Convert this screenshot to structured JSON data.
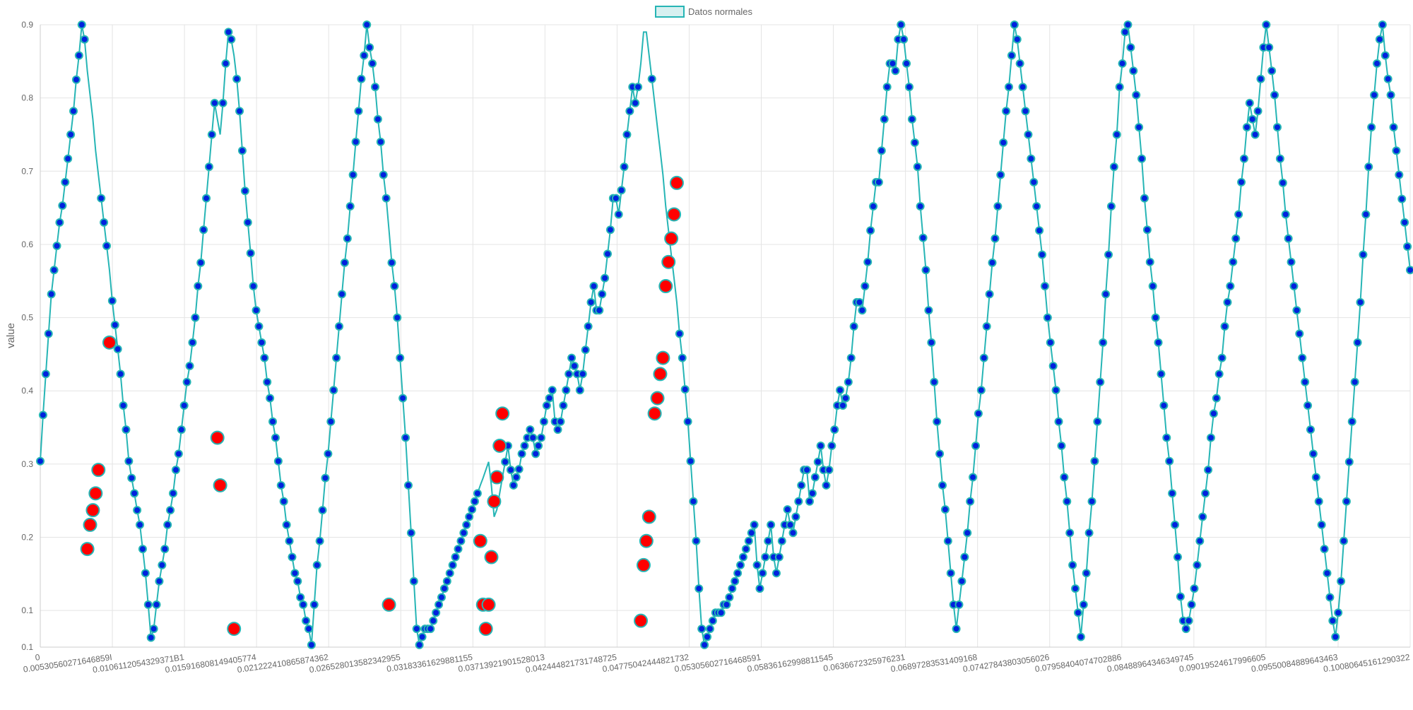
{
  "chart_data": {
    "type": "line",
    "ylabel": "value",
    "ylim": [
      0.1,
      0.9
    ],
    "y_ticks": [
      "0.1",
      "0.1",
      "0.2",
      "0.3",
      "0.4",
      "0.5",
      "0.6",
      "0.7",
      "0.8",
      "0.9"
    ],
    "y_tick_values": [
      0.05,
      0.1,
      0.2,
      0.3,
      0.4,
      0.5,
      0.6,
      0.7,
      0.8,
      0.9
    ],
    "x_ticks": [
      "0",
      "0.00530560271646859I",
      "0.0106112054329371B1",
      "0.015916808149405774",
      "0.021222410865874362",
      "0.026528013582342955",
      "0.03183361629881155",
      "0.03713921901528013",
      "0.042444821731748725",
      "0.04775042444821732",
      "0.05305602716468591",
      "0.05836162998811545",
      "0.0636672325976231",
      "0.06897283531409168",
      "0.07427843803056026",
      "0.07958404074702886",
      "0.08488964346349745",
      "0.09019524617996605",
      "0.09550084889643463",
      "0.10080645161290322"
    ],
    "grid": true,
    "legend": {
      "position": "top-center",
      "entries": [
        "Datos normales"
      ]
    },
    "series": [
      {
        "name": "Datos normales",
        "color": "#26b5b5",
        "point_fill": "#0022dd",
        "anomaly_color": "#ff0000",
        "x_step": 0.000265,
        "values": [
          0.304,
          0.367,
          0.423,
          0.478,
          0.532,
          0.565,
          0.598,
          0.63,
          0.653,
          0.685,
          0.717,
          0.75,
          0.782,
          0.825,
          0.858,
          0.9,
          0.88,
          0.837,
          0.804,
          0.771,
          0.728,
          0.695,
          0.663,
          0.63,
          0.598,
          0.565,
          0.523,
          0.49,
          0.457,
          0.423,
          0.38,
          0.347,
          0.304,
          0.281,
          0.26,
          0.237,
          0.217,
          0.184,
          0.151,
          0.108,
          0.063,
          0.075,
          0.108,
          0.14,
          0.162,
          0.184,
          0.217,
          0.237,
          0.26,
          0.292,
          0.314,
          0.347,
          0.38,
          0.412,
          0.434,
          0.466,
          0.5,
          0.543,
          0.575,
          0.62,
          0.663,
          0.706,
          0.75,
          0.793,
          0.771,
          0.75,
          0.793,
          0.847,
          0.89,
          0.88,
          0.858,
          0.826,
          0.782,
          0.728,
          0.673,
          0.63,
          0.588,
          0.543,
          0.51,
          0.488,
          0.466,
          0.445,
          0.412,
          0.39,
          0.358,
          0.336,
          0.304,
          0.271,
          0.249,
          0.217,
          0.195,
          0.173,
          0.151,
          0.14,
          0.118,
          0.108,
          0.086,
          0.075,
          0.053,
          0.108,
          0.162,
          0.195,
          0.237,
          0.281,
          0.314,
          0.358,
          0.401,
          0.445,
          0.488,
          0.532,
          0.575,
          0.608,
          0.652,
          0.695,
          0.74,
          0.782,
          0.826,
          0.858,
          0.9,
          0.869,
          0.847,
          0.815,
          0.771,
          0.74,
          0.695,
          0.663,
          0.62,
          0.575,
          0.543,
          0.5,
          0.445,
          0.39,
          0.336,
          0.271,
          0.206,
          0.14,
          0.075,
          0.053,
          0.064,
          0.075,
          0.075,
          0.075,
          0.086,
          0.097,
          0.108,
          0.118,
          0.13,
          0.14,
          0.151,
          0.162,
          0.173,
          0.184,
          0.195,
          0.206,
          0.217,
          0.228,
          0.238,
          0.249,
          0.26,
          0.271,
          0.281,
          0.292,
          0.303,
          0.271,
          0.228,
          0.238,
          0.26,
          0.282,
          0.303,
          0.325,
          0.292,
          0.271,
          0.282,
          0.293,
          0.314,
          0.325,
          0.336,
          0.347,
          0.336,
          0.314,
          0.325,
          0.336,
          0.358,
          0.38,
          0.39,
          0.401,
          0.358,
          0.347,
          0.358,
          0.38,
          0.401,
          0.423,
          0.445,
          0.434,
          0.423,
          0.401,
          0.423,
          0.456,
          0.488,
          0.521,
          0.543,
          0.51,
          0.51,
          0.532,
          0.554,
          0.587,
          0.62,
          0.663,
          0.663,
          0.641,
          0.674,
          0.706,
          0.75,
          0.782,
          0.815,
          0.793,
          0.815,
          0.847,
          0.89,
          0.89,
          0.858,
          0.826,
          0.793,
          0.76,
          0.728,
          0.695,
          0.652,
          0.619,
          0.586,
          0.554,
          0.521,
          0.478,
          0.445,
          0.402,
          0.358,
          0.304,
          0.249,
          0.195,
          0.13,
          0.075,
          0.053,
          0.064,
          0.075,
          0.086,
          0.097,
          0.097,
          0.097,
          0.108,
          0.108,
          0.118,
          0.13,
          0.14,
          0.151,
          0.162,
          0.173,
          0.184,
          0.195,
          0.206,
          0.217,
          0.162,
          0.13,
          0.151,
          0.173,
          0.195,
          0.217,
          0.173,
          0.151,
          0.173,
          0.195,
          0.217,
          0.238,
          0.217,
          0.206,
          0.228,
          0.249,
          0.271,
          0.292,
          0.292,
          0.249,
          0.26,
          0.282,
          0.303,
          0.325,
          0.292,
          0.271,
          0.292,
          0.325,
          0.347,
          0.38,
          0.401,
          0.38,
          0.39,
          0.412,
          0.445,
          0.488,
          0.521,
          0.521,
          0.51,
          0.543,
          0.576,
          0.619,
          0.652,
          0.685,
          0.685,
          0.728,
          0.771,
          0.815,
          0.847,
          0.847,
          0.837,
          0.88,
          0.9,
          0.88,
          0.847,
          0.815,
          0.771,
          0.739,
          0.706,
          0.652,
          0.609,
          0.565,
          0.51,
          0.466,
          0.412,
          0.358,
          0.314,
          0.271,
          0.238,
          0.195,
          0.151,
          0.108,
          0.075,
          0.108,
          0.14,
          0.173,
          0.206,
          0.249,
          0.282,
          0.325,
          0.369,
          0.401,
          0.445,
          0.488,
          0.532,
          0.575,
          0.608,
          0.652,
          0.695,
          0.739,
          0.782,
          0.815,
          0.858,
          0.9,
          0.88,
          0.847,
          0.815,
          0.782,
          0.75,
          0.717,
          0.685,
          0.652,
          0.619,
          0.586,
          0.543,
          0.5,
          0.466,
          0.434,
          0.401,
          0.358,
          0.325,
          0.282,
          0.249,
          0.206,
          0.162,
          0.13,
          0.097,
          0.064,
          0.108,
          0.151,
          0.206,
          0.249,
          0.304,
          0.358,
          0.412,
          0.466,
          0.532,
          0.586,
          0.652,
          0.706,
          0.75,
          0.815,
          0.847,
          0.89,
          0.9,
          0.869,
          0.837,
          0.804,
          0.76,
          0.717,
          0.663,
          0.62,
          0.576,
          0.543,
          0.5,
          0.466,
          0.423,
          0.38,
          0.336,
          0.304,
          0.26,
          0.217,
          0.173,
          0.119,
          0.086,
          0.075,
          0.086,
          0.108,
          0.13,
          0.162,
          0.195,
          0.228,
          0.26,
          0.292,
          0.336,
          0.369,
          0.39,
          0.423,
          0.445,
          0.488,
          0.521,
          0.543,
          0.576,
          0.608,
          0.641,
          0.685,
          0.717,
          0.76,
          0.793,
          0.771,
          0.75,
          0.782,
          0.826,
          0.869,
          0.9,
          0.869,
          0.837,
          0.804,
          0.76,
          0.717,
          0.684,
          0.641,
          0.608,
          0.576,
          0.543,
          0.51,
          0.478,
          0.445,
          0.412,
          0.38,
          0.347,
          0.314,
          0.282,
          0.249,
          0.217,
          0.184,
          0.151,
          0.118,
          0.086,
          0.064,
          0.097,
          0.14,
          0.195,
          0.249,
          0.303,
          0.358,
          0.412,
          0.466,
          0.521,
          0.586,
          0.641,
          0.706,
          0.76,
          0.804,
          0.847,
          0.88,
          0.9,
          0.858,
          0.826,
          0.804,
          0.76,
          0.728,
          0.695,
          0.662,
          0.63,
          0.597,
          0.565
        ],
        "anomalies": [
          {
            "index": 17,
            "value": 0.184
          },
          {
            "index": 18,
            "value": 0.217
          },
          {
            "index": 19,
            "value": 0.237
          },
          {
            "index": 20,
            "value": 0.26
          },
          {
            "index": 21,
            "value": 0.292
          },
          {
            "index": 25,
            "value": 0.466
          },
          {
            "index": 64,
            "value": 0.336
          },
          {
            "index": 65,
            "value": 0.271
          },
          {
            "index": 70,
            "value": 0.075
          },
          {
            "index": 126,
            "value": 0.108
          },
          {
            "index": 159,
            "value": 0.195
          },
          {
            "index": 160,
            "value": 0.108
          },
          {
            "index": 161,
            "value": 0.075
          },
          {
            "index": 162,
            "value": 0.108
          },
          {
            "index": 163,
            "value": 0.173
          },
          {
            "index": 164,
            "value": 0.249
          },
          {
            "index": 165,
            "value": 0.282
          },
          {
            "index": 166,
            "value": 0.325
          },
          {
            "index": 167,
            "value": 0.369
          },
          {
            "index": 217,
            "value": 0.086
          },
          {
            "index": 218,
            "value": 0.162
          },
          {
            "index": 219,
            "value": 0.195
          },
          {
            "index": 220,
            "value": 0.228
          },
          {
            "index": 222,
            "value": 0.369
          },
          {
            "index": 223,
            "value": 0.39
          },
          {
            "index": 224,
            "value": 0.423
          },
          {
            "index": 225,
            "value": 0.445
          },
          {
            "index": 226,
            "value": 0.543
          },
          {
            "index": 227,
            "value": 0.576
          },
          {
            "index": 228,
            "value": 0.608
          },
          {
            "index": 229,
            "value": 0.641
          },
          {
            "index": 230,
            "value": 0.684
          }
        ]
      }
    ]
  }
}
